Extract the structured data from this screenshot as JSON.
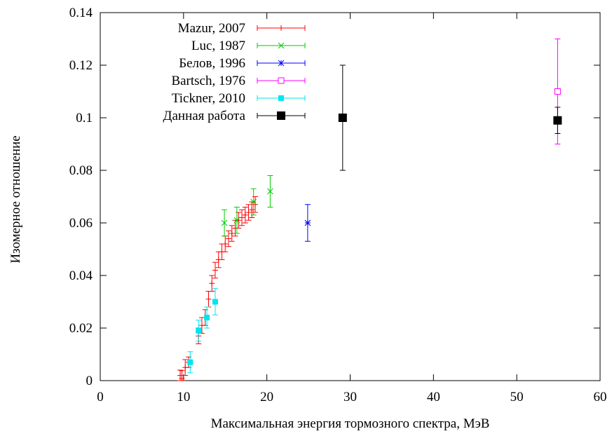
{
  "chart_data": {
    "type": "scatter",
    "xlabel": "Максимальная энергия тормозного спектра, МэВ",
    "ylabel": "Изомерное отношение",
    "xlim": [
      0,
      60
    ],
    "ylim": [
      0,
      0.14
    ],
    "x_ticks": [
      "0",
      "10",
      "20",
      "30",
      "40",
      "50",
      "60"
    ],
    "y_ticks": [
      "0",
      "0.02",
      "0.04",
      "0.06",
      "0.08",
      "0.1",
      "0.12",
      "0.14"
    ],
    "x_tick_values": [
      0,
      10,
      20,
      30,
      40,
      50,
      60
    ],
    "y_tick_values": [
      0,
      0.02,
      0.04,
      0.06,
      0.08,
      0.1,
      0.12,
      0.14
    ],
    "grid": false,
    "legend_position": "top-left",
    "series": [
      {
        "name": "Mazur, 2007",
        "color": "#ff0000",
        "marker": "plus",
        "points": [
          {
            "x": 9.6,
            "y": 0.002,
            "err": 0.002
          },
          {
            "x": 9.8,
            "y": 0.0008,
            "err": 0.003
          },
          {
            "x": 10.2,
            "y": 0.005,
            "err": 0.003
          },
          {
            "x": 10.6,
            "y": 0.007,
            "err": 0.002
          },
          {
            "x": 11.8,
            "y": 0.017,
            "err": 0.003
          },
          {
            "x": 12.2,
            "y": 0.021,
            "err": 0.003
          },
          {
            "x": 12.6,
            "y": 0.024,
            "err": 0.003
          },
          {
            "x": 13.0,
            "y": 0.031,
            "err": 0.003
          },
          {
            "x": 13.4,
            "y": 0.037,
            "err": 0.003
          },
          {
            "x": 13.8,
            "y": 0.042,
            "err": 0.003
          },
          {
            "x": 14.2,
            "y": 0.046,
            "err": 0.003
          },
          {
            "x": 14.6,
            "y": 0.049,
            "err": 0.003
          },
          {
            "x": 15.0,
            "y": 0.052,
            "err": 0.003
          },
          {
            "x": 15.4,
            "y": 0.054,
            "err": 0.003
          },
          {
            "x": 15.8,
            "y": 0.056,
            "err": 0.003
          },
          {
            "x": 16.2,
            "y": 0.058,
            "err": 0.003
          },
          {
            "x": 16.6,
            "y": 0.061,
            "err": 0.003
          },
          {
            "x": 17.0,
            "y": 0.062,
            "err": 0.003
          },
          {
            "x": 17.4,
            "y": 0.063,
            "err": 0.003
          },
          {
            "x": 17.8,
            "y": 0.064,
            "err": 0.003
          },
          {
            "x": 18.2,
            "y": 0.065,
            "err": 0.003
          },
          {
            "x": 18.6,
            "y": 0.067,
            "err": 0.003
          }
        ]
      },
      {
        "name": "Luc, 1987",
        "color": "#00cc00",
        "marker": "cross",
        "points": [
          {
            "x": 14.9,
            "y": 0.06,
            "err": 0.005
          },
          {
            "x": 16.4,
            "y": 0.061,
            "err": 0.005
          },
          {
            "x": 18.4,
            "y": 0.068,
            "err": 0.005
          },
          {
            "x": 20.4,
            "y": 0.072,
            "err": 0.006
          }
        ]
      },
      {
        "name": "Белов, 1996",
        "color": "#0000ff",
        "marker": "star",
        "points": [
          {
            "x": 24.9,
            "y": 0.06,
            "err": 0.007
          }
        ]
      },
      {
        "name": "Bartsch, 1976",
        "color": "#ff00ff",
        "marker": "open-square",
        "points": [
          {
            "x": 54.9,
            "y": 0.11,
            "err": 0.02
          }
        ]
      },
      {
        "name": "Tickner, 2010",
        "color": "#00e5ee",
        "marker": "filled-square",
        "points": [
          {
            "x": 10.8,
            "y": 0.007,
            "err": 0.004
          },
          {
            "x": 11.8,
            "y": 0.019,
            "err": 0.004
          },
          {
            "x": 12.8,
            "y": 0.024,
            "err": 0.004
          },
          {
            "x": 13.8,
            "y": 0.03,
            "err": 0.005
          }
        ]
      },
      {
        "name": "Данная работа",
        "color": "#000000",
        "marker": "big-filled-square",
        "points": [
          {
            "x": 29.1,
            "y": 0.1,
            "err": 0.02
          },
          {
            "x": 54.9,
            "y": 0.099,
            "err": 0.005
          }
        ]
      }
    ]
  }
}
